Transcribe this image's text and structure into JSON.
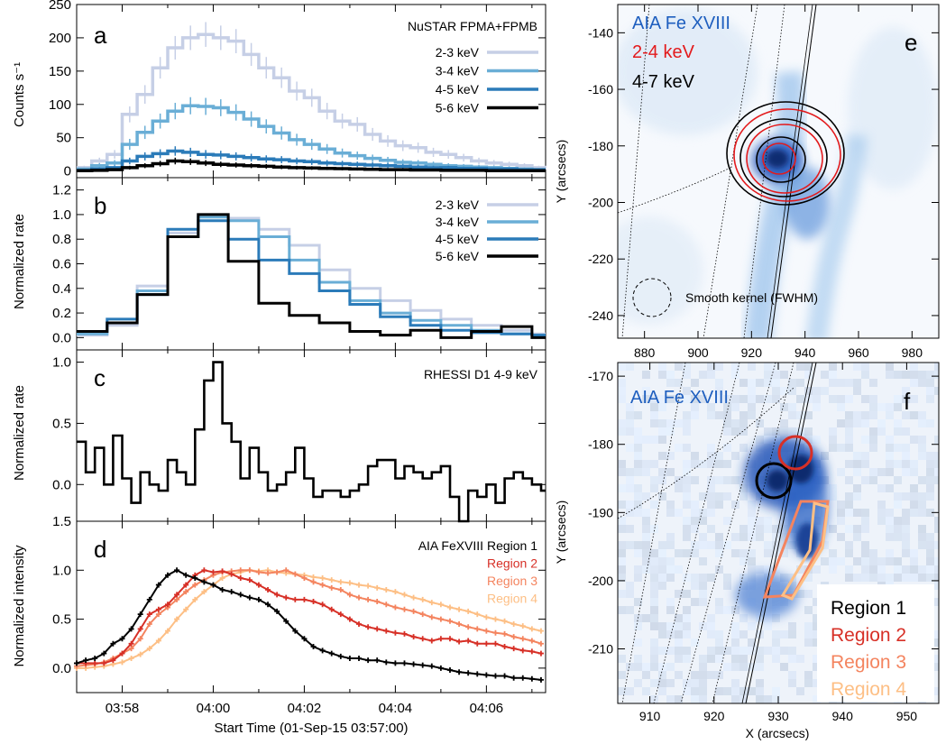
{
  "figure_time_axis": {
    "xlabel": "Start Time (01-Sep-15 03:57:00)",
    "tick_labels": [
      "03:58",
      "04:00",
      "04:02",
      "04:04",
      "04:06"
    ]
  },
  "panel_letters": [
    "a",
    "b",
    "c",
    "d",
    "e",
    "f"
  ],
  "chart_data": [
    {
      "id": "a",
      "type": "line",
      "ylabel": "Counts s⁻¹",
      "ylim": [
        -10,
        250
      ],
      "xlim": [
        0,
        10.3
      ],
      "yticks": [
        "0",
        "50",
        "100",
        "150",
        "200",
        "250"
      ],
      "legend_title": "NuSTAR FPMA+FPMB",
      "legend_position": "top-right",
      "x": [
        0.0,
        0.33,
        0.67,
        1.0,
        1.33,
        1.67,
        2.0,
        2.33,
        2.67,
        3.0,
        3.33,
        3.67,
        4.0,
        4.33,
        4.67,
        5.0,
        5.33,
        5.67,
        6.0,
        6.33,
        6.67,
        7.0,
        7.33,
        7.67,
        8.0,
        8.33,
        8.67,
        9.0,
        9.33,
        9.67,
        10.0,
        10.3
      ],
      "series": [
        {
          "name": "2-3 keV",
          "color": "#c6cfe6",
          "values": [
            5,
            15,
            25,
            85,
            115,
            155,
            185,
            200,
            205,
            200,
            195,
            175,
            155,
            140,
            120,
            110,
            90,
            75,
            70,
            55,
            45,
            38,
            35,
            28,
            25,
            20,
            15,
            12,
            10,
            8,
            5,
            5
          ]
        },
        {
          "name": "3-4 keV",
          "color": "#6aaed6",
          "values": [
            3,
            8,
            12,
            40,
            58,
            75,
            90,
            98,
            97,
            95,
            88,
            78,
            67,
            57,
            47,
            40,
            33,
            27,
            23,
            19,
            16,
            13,
            12,
            10,
            8,
            7,
            6,
            5,
            4,
            3,
            2,
            2
          ]
        },
        {
          "name": "4-5 keV",
          "color": "#2b7bb9",
          "values": [
            1,
            3,
            5,
            15,
            22,
            26,
            30,
            28,
            25,
            24,
            22,
            20,
            18,
            17,
            15,
            14,
            12,
            11,
            10,
            9,
            8,
            7,
            6,
            5,
            5,
            4,
            4,
            3,
            3,
            2,
            2,
            2
          ]
        },
        {
          "name": "5-6 keV",
          "color": "#000000",
          "values": [
            0.5,
            1,
            2,
            5,
            8,
            11,
            15,
            14,
            12,
            10,
            9,
            8,
            7,
            6,
            5,
            4.5,
            4,
            3.5,
            3,
            2.5,
            2,
            2,
            1.5,
            1.5,
            1,
            1,
            1,
            0.5,
            0.5,
            0.5,
            0.5,
            0.5
          ]
        }
      ]
    },
    {
      "id": "b",
      "type": "line",
      "ylabel": "Normalized rate",
      "ylim": [
        -0.1,
        1.3
      ],
      "xlim": [
        0,
        10.3
      ],
      "yticks": [
        "0.0",
        "0.2",
        "0.4",
        "0.6",
        "0.8",
        "1.0",
        "1.2"
      ],
      "legend_position": "top-right",
      "x": [
        0.0,
        0.67,
        1.33,
        2.0,
        2.67,
        3.33,
        4.0,
        4.67,
        5.33,
        6.0,
        6.67,
        7.33,
        8.0,
        8.67,
        9.33,
        10.0
      ],
      "series": [
        {
          "name": "2-3 keV",
          "color": "#c6cfe6",
          "values": [
            0.02,
            0.1,
            0.42,
            0.85,
            1.0,
            0.97,
            0.88,
            0.75,
            0.55,
            0.4,
            0.3,
            0.22,
            0.15,
            0.1,
            0.06,
            0.03
          ]
        },
        {
          "name": "3-4 keV",
          "color": "#6aaed6",
          "values": [
            0.03,
            0.12,
            0.38,
            0.82,
            0.98,
            0.95,
            0.82,
            0.63,
            0.45,
            0.3,
            0.2,
            0.14,
            0.1,
            0.06,
            0.03,
            0.02
          ]
        },
        {
          "name": "4-5 keV",
          "color": "#2b7bb9",
          "values": [
            0.05,
            0.15,
            0.35,
            0.88,
            0.95,
            0.8,
            0.63,
            0.52,
            0.38,
            0.27,
            0.17,
            0.1,
            0.06,
            0.04,
            0.03,
            0.02
          ]
        },
        {
          "name": "5-6 keV",
          "color": "#000000",
          "values": [
            0.05,
            0.12,
            0.35,
            0.82,
            1.0,
            0.62,
            0.28,
            0.18,
            0.12,
            0.05,
            0.02,
            0.06,
            0.0,
            0.05,
            0.09,
            0.0
          ]
        }
      ]
    },
    {
      "id": "c",
      "type": "line",
      "ylabel": "Normalized rate",
      "ylim": [
        -0.3,
        1.1
      ],
      "xlim": [
        0,
        10.3
      ],
      "yticks": [
        "0.0",
        "0.5",
        "1.0"
      ],
      "annotation": "RHESSI D1 4-9 keV",
      "x": [
        0.0,
        0.2,
        0.4,
        0.6,
        0.8,
        1.0,
        1.2,
        1.4,
        1.6,
        1.8,
        2.0,
        2.2,
        2.4,
        2.6,
        2.8,
        3.0,
        3.2,
        3.4,
        3.6,
        3.8,
        4.0,
        4.2,
        4.4,
        4.6,
        4.8,
        5.0,
        5.2,
        5.4,
        5.6,
        5.8,
        6.0,
        6.2,
        6.4,
        6.6,
        6.8,
        7.0,
        7.2,
        7.4,
        7.6,
        7.8,
        8.0,
        8.2,
        8.4,
        8.6,
        8.8,
        9.0,
        9.2,
        9.4,
        9.6,
        9.8,
        10.0,
        10.2
      ],
      "series": [
        {
          "name": "",
          "color": "#000000",
          "values": [
            0.35,
            0.1,
            0.3,
            0.0,
            0.4,
            0.05,
            -0.15,
            0.1,
            0.0,
            -0.05,
            0.2,
            0.1,
            0.0,
            0.45,
            0.85,
            1.0,
            0.5,
            0.35,
            0.05,
            0.3,
            0.1,
            -0.05,
            0.0,
            0.1,
            0.3,
            0.05,
            -0.1,
            -0.05,
            -0.05,
            -0.1,
            -0.05,
            0.0,
            0.15,
            0.2,
            0.2,
            0.05,
            0.15,
            0.1,
            0.05,
            0.1,
            0.15,
            -0.1,
            -0.3,
            -0.05,
            -0.1,
            0.0,
            -0.15,
            0.05,
            0.1,
            0.05,
            0.0,
            -0.05
          ]
        }
      ]
    },
    {
      "id": "d",
      "type": "line",
      "ylabel": "Normalized intensity",
      "ylim": [
        -0.25,
        1.5
      ],
      "xlim": [
        0,
        10.3
      ],
      "yticks": [
        "0.0",
        "0.5",
        "1.0",
        "1.5"
      ],
      "legend_position": "top-right",
      "x": [
        0.0,
        0.2,
        0.4,
        0.6,
        0.8,
        1.0,
        1.2,
        1.4,
        1.6,
        1.8,
        2.0,
        2.2,
        2.4,
        2.6,
        2.8,
        3.0,
        3.2,
        3.4,
        3.6,
        3.8,
        4.0,
        4.2,
        4.4,
        4.6,
        4.8,
        5.0,
        5.2,
        5.4,
        5.6,
        5.8,
        6.0,
        6.2,
        6.4,
        6.6,
        6.8,
        7.0,
        7.2,
        7.4,
        7.6,
        7.8,
        8.0,
        8.2,
        8.4,
        8.6,
        8.8,
        9.0,
        9.2,
        9.4,
        9.6,
        9.8,
        10.0,
        10.2
      ],
      "series": [
        {
          "name": "AIA FeXVIII Region 1",
          "color": "#000000",
          "values": [
            0.05,
            0.08,
            0.1,
            0.15,
            0.25,
            0.3,
            0.4,
            0.55,
            0.7,
            0.85,
            0.95,
            1.0,
            0.95,
            0.92,
            0.88,
            0.85,
            0.8,
            0.78,
            0.75,
            0.72,
            0.7,
            0.65,
            0.58,
            0.48,
            0.38,
            0.3,
            0.22,
            0.18,
            0.15,
            0.12,
            0.1,
            0.1,
            0.08,
            0.08,
            0.06,
            0.05,
            0.05,
            0.04,
            0.03,
            0.02,
            0.0,
            -0.02,
            -0.04,
            -0.05,
            -0.06,
            -0.07,
            -0.08,
            -0.08,
            -0.1,
            -0.1,
            -0.11,
            -0.12
          ]
        },
        {
          "name": "Region 2",
          "color": "#d73027",
          "values": [
            0.05,
            0.05,
            0.05,
            0.05,
            0.08,
            0.15,
            0.25,
            0.4,
            0.55,
            0.6,
            0.65,
            0.75,
            0.85,
            0.95,
            1.0,
            0.98,
            0.99,
            0.96,
            0.92,
            0.9,
            0.85,
            0.8,
            0.75,
            0.72,
            0.7,
            0.7,
            0.68,
            0.65,
            0.6,
            0.55,
            0.5,
            0.45,
            0.42,
            0.4,
            0.38,
            0.36,
            0.35,
            0.32,
            0.3,
            0.28,
            0.3,
            0.3,
            0.27,
            0.28,
            0.25,
            0.25,
            0.25,
            0.22,
            0.2,
            0.18,
            0.17,
            0.15
          ]
        },
        {
          "name": "Region 3",
          "color": "#f4845f",
          "values": [
            0.02,
            0.03,
            0.04,
            0.06,
            0.1,
            0.15,
            0.2,
            0.3,
            0.45,
            0.55,
            0.62,
            0.7,
            0.78,
            0.85,
            0.9,
            0.95,
            0.98,
            0.99,
            1.0,
            1.0,
            0.98,
            0.97,
            0.98,
            1.0,
            0.96,
            0.92,
            0.88,
            0.85,
            0.82,
            0.8,
            0.75,
            0.72,
            0.7,
            0.68,
            0.65,
            0.62,
            0.6,
            0.58,
            0.55,
            0.52,
            0.5,
            0.48,
            0.45,
            0.42,
            0.4,
            0.38,
            0.36,
            0.35,
            0.32,
            0.3,
            0.28,
            0.25
          ]
        },
        {
          "name": "Region 4",
          "color": "#fdbf85",
          "values": [
            0.0,
            0.0,
            0.01,
            0.02,
            0.04,
            0.06,
            0.1,
            0.14,
            0.2,
            0.28,
            0.38,
            0.5,
            0.6,
            0.7,
            0.78,
            0.85,
            0.92,
            0.96,
            0.98,
            1.0,
            0.99,
            1.0,
            0.98,
            0.97,
            0.96,
            0.95,
            0.93,
            0.92,
            0.9,
            0.88,
            0.87,
            0.85,
            0.84,
            0.82,
            0.8,
            0.78,
            0.75,
            0.72,
            0.7,
            0.67,
            0.65,
            0.62,
            0.6,
            0.58,
            0.55,
            0.52,
            0.5,
            0.48,
            0.45,
            0.43,
            0.4,
            0.38
          ]
        }
      ]
    },
    {
      "id": "e",
      "type": "heatmap",
      "xlim": [
        870,
        990
      ],
      "ylim": [
        -248,
        -130
      ],
      "xticks": [
        "880",
        "900",
        "920",
        "940",
        "960",
        "980"
      ],
      "yticks": [
        "-140",
        "-160",
        "-180",
        "-200",
        "-220",
        "-240"
      ],
      "ylabel": "Y (arcsecs)",
      "legend_position": "top-left",
      "legend": [
        {
          "label": "AIA Fe XVIII",
          "color": "#1f5fbf"
        },
        {
          "label": "2-4 keV",
          "color": "#e31a1c"
        },
        {
          "label": "4-7 keV",
          "color": "#000000"
        }
      ],
      "kernel_label": "Smooth kernel (FWHM)"
    },
    {
      "id": "f",
      "type": "heatmap",
      "xlim": [
        905,
        955
      ],
      "ylim": [
        -218,
        -168
      ],
      "xticks": [
        "910",
        "920",
        "930",
        "940",
        "950"
      ],
      "yticks": [
        "-170",
        "-180",
        "-190",
        "-200",
        "-210"
      ],
      "xlabel": "X (arcsecs)",
      "ylabel": "Y (arcsecs)",
      "title": "AIA Fe XVIII",
      "title_color": "#1f5fbf",
      "legend_position": "bottom-right",
      "regions": [
        {
          "label": "Region 1",
          "color": "#000000"
        },
        {
          "label": "Region 2",
          "color": "#d73027"
        },
        {
          "label": "Region 3",
          "color": "#f4845f"
        },
        {
          "label": "Region 4",
          "color": "#fdbf85"
        }
      ]
    }
  ]
}
